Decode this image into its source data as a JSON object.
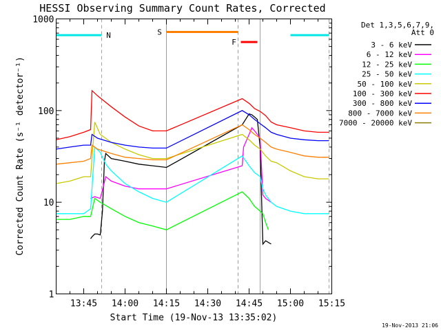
{
  "chart_data": {
    "type": "line",
    "title": "HESSI Observing Summary Count Rates, Corrected",
    "xlabel": "Start Time (19-Nov-13 13:35:02)",
    "ylabel": "Corrected Count Rate (s⁻¹ detector⁻¹)",
    "yscale": "log",
    "ylim": [
      1,
      1000
    ],
    "xlim_minutes": [
      0,
      100
    ],
    "x_ticks": [
      {
        "m": 10,
        "label": "13:45"
      },
      {
        "m": 25,
        "label": "14:00"
      },
      {
        "m": 40,
        "label": "14:15"
      },
      {
        "m": 55,
        "label": "14:30"
      },
      {
        "m": 70,
        "label": "14:45"
      },
      {
        "m": 85,
        "label": "15:00"
      },
      {
        "m": 100,
        "label": "15:15"
      }
    ],
    "y_ticks": [
      {
        "v": 1,
        "label": "1"
      },
      {
        "v": 10,
        "label": "10"
      },
      {
        "v": 100,
        "label": "100"
      },
      {
        "v": 1000,
        "label": "1000"
      }
    ],
    "legend_header": [
      "Det 1,3,5,6,7,9,",
      "Att 0"
    ],
    "legend_position": "right",
    "stamp": "19-Nov-2013 21:06",
    "flags": [
      {
        "label": "N",
        "color": "#00e5e5",
        "segments": [
          [
            0,
            16.5
          ],
          [
            85,
            99
          ]
        ],
        "y": 665
      },
      {
        "label": "S",
        "color": "#ff7f00",
        "segments": [
          [
            40,
            66
          ]
        ],
        "y": 720
      },
      {
        "label": "F",
        "color": "#ff0000",
        "segments": [
          [
            67,
            73
          ]
        ],
        "y": 560
      }
    ],
    "boundaries": [
      {
        "m": 16.5,
        "color": "#00e5e5",
        "style": "dash"
      },
      {
        "m": 40,
        "color": "#c8a000",
        "style": "solid"
      },
      {
        "m": 66,
        "color": "#ff7f00",
        "style": "dash"
      },
      {
        "m": 74,
        "color": "#00e5e5",
        "style": "solid"
      },
      {
        "m": 99,
        "color": "#00e5e5",
        "style": "dash"
      }
    ],
    "series": [
      {
        "name": "3 - 6 keV",
        "color": "#000000",
        "x": [
          12.5,
          13,
          14,
          15,
          16,
          16.8,
          17.5,
          18,
          20,
          25,
          30,
          35,
          40,
          67.5,
          68.5,
          70,
          71,
          72,
          73,
          74,
          75,
          76,
          78
        ],
        "y": [
          4,
          4.2,
          4.5,
          4.5,
          4.4,
          8,
          28,
          34,
          30,
          28,
          26,
          25,
          24,
          70,
          78,
          92,
          90,
          85,
          80,
          40,
          3.5,
          3.8,
          3.5
        ]
      },
      {
        "name": "6 - 12 keV",
        "color": "#ff00ff",
        "x": [
          12.5,
          14,
          16,
          18,
          20,
          25,
          30,
          35,
          40,
          67.5,
          68,
          70,
          71,
          72,
          73,
          74,
          75,
          76,
          78
        ],
        "y": [
          11,
          11.5,
          11,
          19,
          17,
          15,
          14,
          14,
          14,
          25,
          40,
          55,
          65,
          60,
          55,
          50,
          12,
          11,
          10
        ]
      },
      {
        "name": "12 - 25 keV",
        "color": "#00ff00",
        "x": [
          0,
          5,
          10,
          12.5,
          14,
          16,
          20,
          25,
          30,
          35,
          40,
          67.5,
          70,
          72,
          73,
          74,
          75,
          76,
          77
        ],
        "y": [
          6.5,
          6.5,
          7,
          7,
          11,
          10,
          8.5,
          7,
          6,
          5.5,
          5,
          13,
          11,
          9,
          8.5,
          8,
          7.5,
          6,
          5
        ]
      },
      {
        "name": "25 - 50 keV",
        "color": "#00ffff",
        "x": [
          0,
          5,
          10,
          12.5,
          14,
          16,
          18,
          20,
          25,
          30,
          35,
          40,
          67.5,
          70,
          72,
          73,
          74,
          75,
          76,
          78,
          80,
          85,
          90,
          95,
          99
        ],
        "y": [
          7.5,
          7.5,
          7.5,
          8.5,
          40,
          35,
          26,
          22,
          16,
          13,
          11,
          10,
          32,
          25,
          21,
          20,
          19,
          14,
          12,
          10,
          9,
          8,
          7.5,
          7.5,
          7.5
        ]
      },
      {
        "name": "50 - 100 keV",
        "color": "#c8c800",
        "x": [
          0,
          5,
          10,
          12.5,
          14,
          16,
          20,
          25,
          30,
          35,
          40,
          67.5,
          70,
          72,
          74,
          76,
          78,
          80,
          85,
          90,
          95,
          99
        ],
        "y": [
          16,
          17,
          19,
          19,
          75,
          55,
          45,
          38,
          33,
          30,
          30,
          55,
          48,
          42,
          38,
          32,
          28,
          27,
          22,
          19,
          18,
          18
        ]
      },
      {
        "name": "100 - 300 keV",
        "color": "#ff0000",
        "x": [
          0,
          5,
          10,
          12.5,
          13,
          15,
          20,
          25,
          30,
          35,
          40,
          67.5,
          70,
          72,
          74,
          76,
          78,
          80,
          85,
          90,
          95,
          99
        ],
        "y": [
          48,
          52,
          58,
          62,
          165,
          145,
          110,
          85,
          68,
          60,
          60,
          135,
          120,
          105,
          98,
          88,
          75,
          70,
          65,
          60,
          58,
          58
        ]
      },
      {
        "name": "300 - 800 keV",
        "color": "#0000ff",
        "x": [
          0,
          5,
          10,
          12.5,
          13,
          15,
          20,
          25,
          30,
          35,
          40,
          67.5,
          70,
          72,
          74,
          76,
          78,
          80,
          85,
          90,
          95,
          99
        ],
        "y": [
          38,
          40,
          42,
          42,
          55,
          50,
          45,
          42,
          40,
          39,
          39,
          100,
          90,
          80,
          72,
          65,
          58,
          55,
          50,
          48,
          47,
          47
        ]
      },
      {
        "name": "800 - 7000 keV",
        "color": "#ff7f00",
        "x": [
          0,
          5,
          10,
          12.5,
          13,
          15,
          20,
          25,
          30,
          35,
          40,
          67.5,
          70,
          72,
          74,
          76,
          78,
          80,
          85,
          90,
          95,
          99
        ],
        "y": [
          26,
          27,
          28,
          30,
          42,
          38,
          34,
          31,
          30,
          29,
          29,
          70,
          62,
          55,
          50,
          45,
          40,
          38,
          35,
          32,
          31,
          31
        ]
      },
      {
        "name": "7000 - 20000 keV",
        "color": "#8b7d00",
        "x": [],
        "y": []
      }
    ]
  }
}
